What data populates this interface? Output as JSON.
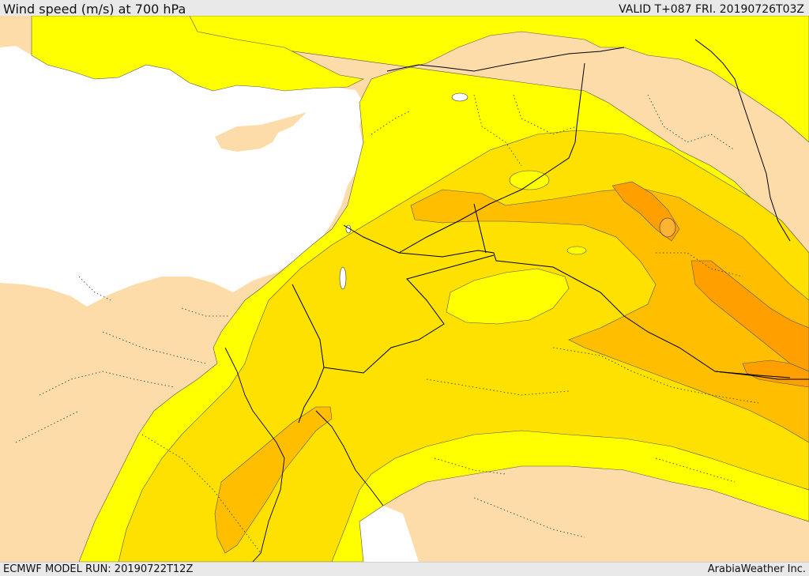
{
  "header": {
    "title": "Wind speed (m/s) at 700 hPa",
    "valid": "VALID T+087 FRI. 20190726T03Z"
  },
  "footer": {
    "model_run": "ECMWF MODEL RUN: 20190722T12Z",
    "credit": "ArabiaWeather Inc."
  },
  "map": {
    "colors": {
      "land_low": "#fddcaa",
      "sea": "#ffffff",
      "level_1": "#ffff00",
      "level_2": "#ffe100",
      "level_3": "#ffbf00",
      "level_4": "#ffa000",
      "borders": "#000000",
      "contours": "#444444"
    }
  }
}
